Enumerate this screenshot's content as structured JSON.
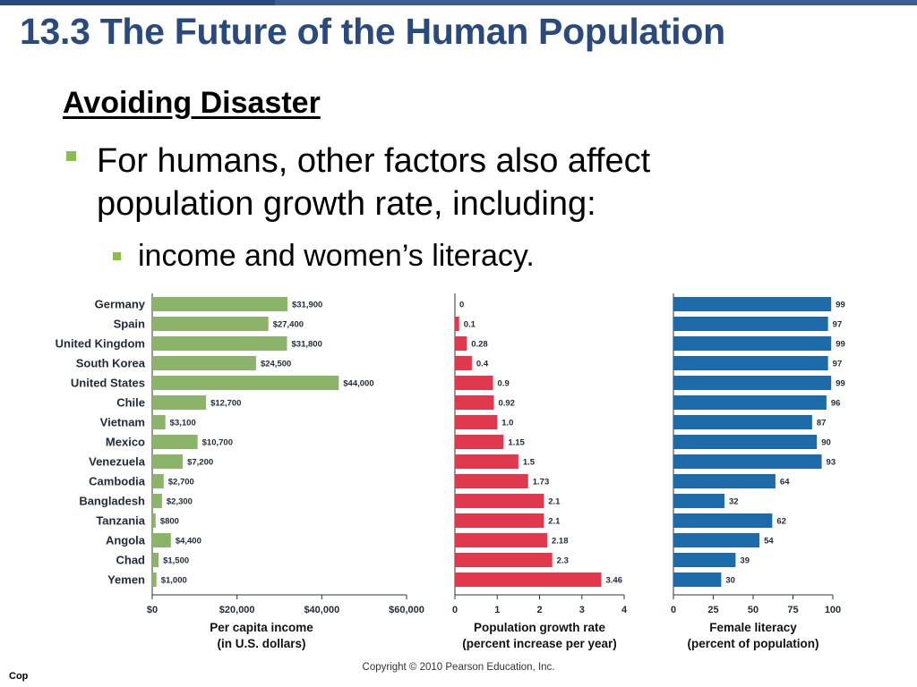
{
  "slide": {
    "title": "13.3 The Future of the Human Population",
    "heading": "Avoiding Disaster",
    "bullet1": "For humans, other factors also affect population growth rate, including:",
    "bullet2": "income and women’s literacy.",
    "copyright_center": "Copyright © 2010 Pearson Education, Inc.",
    "copyright_left": "Cop",
    "colors": {
      "title": "#2a4a7e",
      "bullet": "#8cbb4f"
    }
  },
  "chart_data": [
    {
      "type": "bar",
      "orientation": "horizontal",
      "categories": [
        "Germany",
        "Spain",
        "United Kingdom",
        "South Korea",
        "United States",
        "Chile",
        "Vietnam",
        "Mexico",
        "Venezuela",
        "Cambodia",
        "Bangladesh",
        "Tanzania",
        "Angola",
        "Chad",
        "Yemen"
      ],
      "values": [
        31900,
        27400,
        31800,
        24500,
        44000,
        12700,
        3100,
        10700,
        7200,
        2700,
        2300,
        800,
        4400,
        1500,
        1000
      ],
      "value_labels": [
        "$31,900",
        "$27,400",
        "$31,800",
        "$24,500",
        "$44,000",
        "$12,700",
        "$3,100",
        "$10,700",
        "$7,200",
        "$2,700",
        "$2,300",
        "$800",
        "$4,400",
        "$1,500",
        "$1,000"
      ],
      "xlim": [
        0,
        60000
      ],
      "ticks": [
        0,
        20000,
        40000,
        60000
      ],
      "tick_labels": [
        "$0",
        "$20,000",
        "$40,000",
        "$60,000"
      ],
      "xlabel": "Per capita income",
      "xlabel_sub": "(in U.S. dollars)",
      "color": "#8cb36a"
    },
    {
      "type": "bar",
      "orientation": "horizontal",
      "categories": [
        "Germany",
        "Spain",
        "United Kingdom",
        "South Korea",
        "United States",
        "Chile",
        "Vietnam",
        "Mexico",
        "Venezuela",
        "Cambodia",
        "Bangladesh",
        "Tanzania",
        "Angola",
        "Chad",
        "Yemen"
      ],
      "values": [
        0,
        0.1,
        0.28,
        0.4,
        0.9,
        0.92,
        1.0,
        1.15,
        1.5,
        1.73,
        2.1,
        2.1,
        2.18,
        2.3,
        3.46
      ],
      "value_labels": [
        "0",
        "0.1",
        "0.28",
        "0.4",
        "0.9",
        "0.92",
        "1.0",
        "1.15",
        "1.5",
        "1.73",
        "2.1",
        "2.1",
        "2.18",
        "2.3",
        "3.46"
      ],
      "xlim": [
        0,
        4
      ],
      "ticks": [
        0,
        1,
        2,
        3,
        4
      ],
      "tick_labels": [
        "0",
        "1",
        "2",
        "3",
        "4"
      ],
      "xlabel": "Population growth rate",
      "xlabel_sub": "(percent increase per year)",
      "color": "#e0394d"
    },
    {
      "type": "bar",
      "orientation": "horizontal",
      "categories": [
        "Germany",
        "Spain",
        "United Kingdom",
        "South Korea",
        "United States",
        "Chile",
        "Vietnam",
        "Mexico",
        "Venezuela",
        "Cambodia",
        "Bangladesh",
        "Tanzania",
        "Angola",
        "Chad",
        "Yemen"
      ],
      "values": [
        99,
        97,
        99,
        97,
        99,
        96,
        87,
        90,
        93,
        64,
        32,
        62,
        54,
        39,
        30
      ],
      "value_labels": [
        "99",
        "97",
        "99",
        "97",
        "99",
        "96",
        "87",
        "90",
        "93",
        "64",
        "32",
        "62",
        "54",
        "39",
        "30"
      ],
      "xlim": [
        0,
        100
      ],
      "ticks": [
        0,
        25,
        50,
        75,
        100
      ],
      "tick_labels": [
        "0",
        "25",
        "50",
        "75",
        "100"
      ],
      "xlabel": "Female literacy",
      "xlabel_sub": "(percent of population)",
      "color": "#1d6aa8"
    }
  ]
}
